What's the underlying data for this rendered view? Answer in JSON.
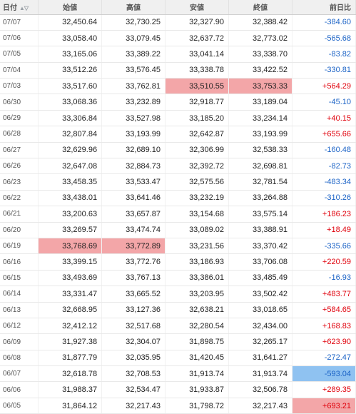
{
  "headers": {
    "date": "日付",
    "open": "始値",
    "high": "高値",
    "low": "安値",
    "close": "終値",
    "change": "前日比"
  },
  "rows": [
    {
      "date": "07/07",
      "open": "32,450.64",
      "high": "32,730.25",
      "low": "32,327.90",
      "close": "32,388.42",
      "change": "-384.60",
      "sign": "neg",
      "hl": []
    },
    {
      "date": "07/06",
      "open": "33,058.40",
      "high": "33,079.45",
      "low": "32,637.72",
      "close": "32,773.02",
      "change": "-565.68",
      "sign": "neg",
      "hl": []
    },
    {
      "date": "07/05",
      "open": "33,165.06",
      "high": "33,389.22",
      "low": "33,041.14",
      "close": "33,338.70",
      "change": "-83.82",
      "sign": "neg",
      "hl": []
    },
    {
      "date": "07/04",
      "open": "33,512.26",
      "high": "33,576.45",
      "low": "33,338.78",
      "close": "33,422.52",
      "change": "-330.81",
      "sign": "neg",
      "hl": []
    },
    {
      "date": "07/03",
      "open": "33,517.60",
      "high": "33,762.81",
      "low": "33,510.55",
      "close": "33,753.33",
      "change": "+564.29",
      "sign": "pos",
      "hl": [
        "low",
        "close"
      ]
    },
    {
      "date": "06/30",
      "open": "33,068.36",
      "high": "33,232.89",
      "low": "32,918.77",
      "close": "33,189.04",
      "change": "-45.10",
      "sign": "neg",
      "hl": []
    },
    {
      "date": "06/29",
      "open": "33,306.84",
      "high": "33,527.98",
      "low": "33,185.20",
      "close": "33,234.14",
      "change": "+40.15",
      "sign": "pos",
      "hl": []
    },
    {
      "date": "06/28",
      "open": "32,807.84",
      "high": "33,193.99",
      "low": "32,642.87",
      "close": "33,193.99",
      "change": "+655.66",
      "sign": "pos",
      "hl": []
    },
    {
      "date": "06/27",
      "open": "32,629.96",
      "high": "32,689.10",
      "low": "32,306.99",
      "close": "32,538.33",
      "change": "-160.48",
      "sign": "neg",
      "hl": []
    },
    {
      "date": "06/26",
      "open": "32,647.08",
      "high": "32,884.73",
      "low": "32,392.72",
      "close": "32,698.81",
      "change": "-82.73",
      "sign": "neg",
      "hl": []
    },
    {
      "date": "06/23",
      "open": "33,458.35",
      "high": "33,533.47",
      "low": "32,575.56",
      "close": "32,781.54",
      "change": "-483.34",
      "sign": "neg",
      "hl": []
    },
    {
      "date": "06/22",
      "open": "33,438.01",
      "high": "33,641.46",
      "low": "33,232.19",
      "close": "33,264.88",
      "change": "-310.26",
      "sign": "neg",
      "hl": []
    },
    {
      "date": "06/21",
      "open": "33,200.63",
      "high": "33,657.87",
      "low": "33,154.68",
      "close": "33,575.14",
      "change": "+186.23",
      "sign": "pos",
      "hl": []
    },
    {
      "date": "06/20",
      "open": "33,269.57",
      "high": "33,474.74",
      "low": "33,089.02",
      "close": "33,388.91",
      "change": "+18.49",
      "sign": "pos",
      "hl": []
    },
    {
      "date": "06/19",
      "open": "33,768.69",
      "high": "33,772.89",
      "low": "33,231.56",
      "close": "33,370.42",
      "change": "-335.66",
      "sign": "neg",
      "hl": [
        "open",
        "high"
      ]
    },
    {
      "date": "06/16",
      "open": "33,399.15",
      "high": "33,772.76",
      "low": "33,186.93",
      "close": "33,706.08",
      "change": "+220.59",
      "sign": "pos",
      "hl": []
    },
    {
      "date": "06/15",
      "open": "33,493.69",
      "high": "33,767.13",
      "low": "33,386.01",
      "close": "33,485.49",
      "change": "-16.93",
      "sign": "neg",
      "hl": []
    },
    {
      "date": "06/14",
      "open": "33,331.47",
      "high": "33,665.52",
      "low": "33,203.95",
      "close": "33,502.42",
      "change": "+483.77",
      "sign": "pos",
      "hl": []
    },
    {
      "date": "06/13",
      "open": "32,668.95",
      "high": "33,127.36",
      "low": "32,638.21",
      "close": "33,018.65",
      "change": "+584.65",
      "sign": "pos",
      "hl": []
    },
    {
      "date": "06/12",
      "open": "32,412.12",
      "high": "32,517.68",
      "low": "32,280.54",
      "close": "32,434.00",
      "change": "+168.83",
      "sign": "pos",
      "hl": []
    },
    {
      "date": "06/09",
      "open": "31,927.38",
      "high": "32,304.07",
      "low": "31,898.75",
      "close": "32,265.17",
      "change": "+623.90",
      "sign": "pos",
      "hl": []
    },
    {
      "date": "06/08",
      "open": "31,877.79",
      "high": "32,035.95",
      "low": "31,420.45",
      "close": "31,641.27",
      "change": "-272.47",
      "sign": "neg",
      "hl": []
    },
    {
      "date": "06/07",
      "open": "32,618.78",
      "high": "32,708.53",
      "low": "31,913.74",
      "close": "31,913.74",
      "change": "-593.04",
      "sign": "neg",
      "hl": [
        "change"
      ]
    },
    {
      "date": "06/06",
      "open": "31,988.37",
      "high": "32,534.47",
      "low": "31,933.87",
      "close": "32,506.78",
      "change": "+289.35",
      "sign": "pos",
      "hl": []
    },
    {
      "date": "06/05",
      "open": "31,864.12",
      "high": "32,217.43",
      "low": "31,798.72",
      "close": "32,217.43",
      "change": "+693.21",
      "sign": "pos",
      "hl": [
        "change"
      ]
    }
  ]
}
